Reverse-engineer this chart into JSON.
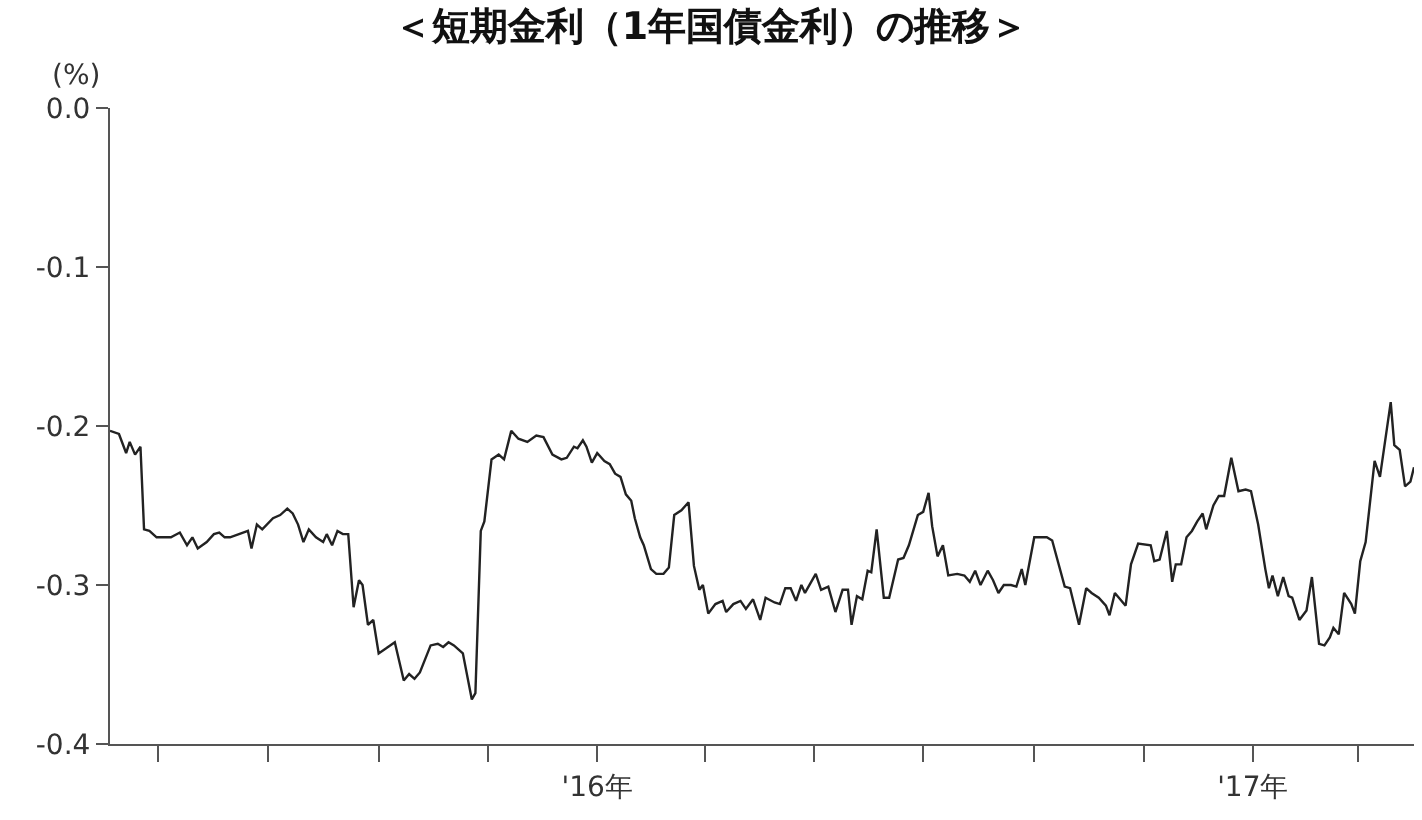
{
  "chart_data": {
    "type": "line",
    "title": "＜短期金利（1年国債金利）の推移＞",
    "ylabel": "(%)",
    "x": [
      "2015-04-04",
      "2015-04-09",
      "2015-04-13",
      "2015-04-15",
      "2015-04-18",
      "2015-04-21",
      "2015-04-23",
      "2015-04-26",
      "2015-04-30",
      "2015-05-08",
      "2015-05-13",
      "2015-05-17",
      "2015-05-20",
      "2015-05-23",
      "2015-05-28",
      "2015-06-01",
      "2015-06-04",
      "2015-06-07",
      "2015-06-10",
      "2015-06-15",
      "2015-06-20",
      "2015-06-22",
      "2015-06-25",
      "2015-06-28",
      "2015-07-04",
      "2015-07-08",
      "2015-07-12",
      "2015-07-15",
      "2015-07-18",
      "2015-07-21",
      "2015-07-24",
      "2015-07-28",
      "2015-08-01",
      "2015-08-03",
      "2015-08-06",
      "2015-08-09",
      "2015-08-12",
      "2015-08-15",
      "2015-08-18",
      "2015-08-21",
      "2015-08-23",
      "2015-08-26",
      "2015-08-29",
      "2015-09-01",
      "2015-09-05",
      "2015-09-10",
      "2015-09-15",
      "2015-09-18",
      "2015-09-21",
      "2015-09-24",
      "2015-09-30",
      "2015-10-04",
      "2015-10-07",
      "2015-10-10",
      "2015-10-13",
      "2015-10-18",
      "2015-10-23",
      "2015-10-25",
      "2015-10-28",
      "2015-10-30",
      "2015-11-03",
      "2015-11-07",
      "2015-11-10",
      "2015-11-14",
      "2015-11-18",
      "2015-11-23",
      "2015-11-28",
      "2015-12-02",
      "2015-12-07",
      "2015-12-12",
      "2015-12-15",
      "2015-12-19",
      "2015-12-21",
      "2015-12-24",
      "2015-12-26",
      "2015-12-29",
      "2016-01-01",
      "2016-01-05",
      "2016-01-08",
      "2016-01-11",
      "2016-01-14",
      "2016-01-17",
      "2016-01-20",
      "2016-01-22",
      "2016-01-25",
      "2016-01-27",
      "2016-01-31",
      "2016-02-03",
      "2016-02-07",
      "2016-02-10",
      "2016-02-13",
      "2016-02-17",
      "2016-02-21",
      "2016-02-24",
      "2016-02-27",
      "2016-02-29",
      "2016-03-03",
      "2016-03-07",
      "2016-03-11",
      "2016-03-13",
      "2016-03-17",
      "2016-03-21",
      "2016-03-24",
      "2016-03-28",
      "2016-04-01",
      "2016-04-04",
      "2016-04-09",
      "2016-04-12",
      "2016-04-15",
      "2016-04-18",
      "2016-04-21",
      "2016-04-24",
      "2016-04-26",
      "2016-05-02",
      "2016-05-05",
      "2016-05-09",
      "2016-05-13",
      "2016-05-17",
      "2016-05-20",
      "2016-05-22",
      "2016-05-25",
      "2016-05-28",
      "2016-05-31",
      "2016-06-02",
      "2016-06-05",
      "2016-06-09",
      "2016-06-12",
      "2016-06-17",
      "2016-06-20",
      "2016-06-23",
      "2016-06-28",
      "2016-07-01",
      "2016-07-04",
      "2016-07-06",
      "2016-07-09",
      "2016-07-12",
      "2016-07-15",
      "2016-07-20",
      "2016-07-24",
      "2016-07-27",
      "2016-07-30",
      "2016-08-02",
      "2016-08-06",
      "2016-08-09",
      "2016-08-12",
      "2016-08-15",
      "2016-08-19",
      "2016-08-22",
      "2016-08-25",
      "2016-08-27",
      "2016-09-01",
      "2016-09-08",
      "2016-09-11",
      "2016-09-18",
      "2016-09-21",
      "2016-09-26",
      "2016-09-30",
      "2016-10-03",
      "2016-10-07",
      "2016-10-11",
      "2016-10-13",
      "2016-10-16",
      "2016-10-22",
      "2016-10-25",
      "2016-10-29",
      "2016-11-05",
      "2016-11-07",
      "2016-11-10",
      "2016-11-14",
      "2016-11-17",
      "2016-11-19",
      "2016-11-22",
      "2016-11-25",
      "2016-11-28",
      "2016-12-01",
      "2016-12-04",
      "2016-12-06",
      "2016-12-10",
      "2016-12-13",
      "2016-12-16",
      "2016-12-20",
      "2016-12-24",
      "2016-12-28",
      "2016-12-31",
      "2017-01-04",
      "2017-01-08",
      "2017-01-10",
      "2017-01-12",
      "2017-01-15",
      "2017-01-18",
      "2017-01-21",
      "2017-01-23",
      "2017-01-27",
      "2017-01-31",
      "2017-02-03",
      "2017-02-07",
      "2017-02-10",
      "2017-02-13",
      "2017-02-15",
      "2017-02-18",
      "2017-02-21",
      "2017-02-25",
      "2017-02-27",
      "2017-03-02",
      "2017-03-05",
      "2017-03-10",
      "2017-03-13",
      "2017-03-19",
      "2017-03-21",
      "2017-03-24",
      "2017-03-27",
      "2017-03-30",
      "2017-04-01"
    ],
    "values": [
      -0.203,
      -0.205,
      -0.217,
      -0.21,
      -0.218,
      -0.213,
      -0.265,
      -0.266,
      -0.27,
      -0.27,
      -0.267,
      -0.275,
      -0.27,
      -0.277,
      -0.273,
      -0.268,
      -0.267,
      -0.27,
      -0.27,
      -0.268,
      -0.266,
      -0.277,
      -0.262,
      -0.265,
      -0.258,
      -0.256,
      -0.252,
      -0.255,
      -0.262,
      -0.273,
      -0.265,
      -0.27,
      -0.273,
      -0.268,
      -0.275,
      -0.266,
      -0.268,
      -0.268,
      -0.314,
      -0.297,
      -0.3,
      -0.325,
      -0.322,
      -0.343,
      -0.34,
      -0.336,
      -0.36,
      -0.356,
      -0.359,
      -0.355,
      -0.338,
      -0.337,
      -0.339,
      -0.336,
      -0.338,
      -0.343,
      -0.372,
      -0.368,
      -0.266,
      -0.26,
      -0.221,
      -0.218,
      -0.221,
      -0.203,
      -0.208,
      -0.21,
      -0.206,
      -0.207,
      -0.218,
      -0.221,
      -0.22,
      -0.213,
      -0.214,
      -0.209,
      -0.213,
      -0.223,
      -0.217,
      -0.222,
      -0.224,
      -0.23,
      -0.232,
      -0.243,
      -0.247,
      -0.258,
      -0.27,
      -0.275,
      -0.29,
      -0.293,
      -0.293,
      -0.289,
      -0.256,
      -0.253,
      -0.248,
      -0.288,
      -0.303,
      -0.3,
      -0.318,
      -0.312,
      -0.31,
      -0.317,
      -0.312,
      -0.31,
      -0.315,
      -0.309,
      -0.322,
      -0.308,
      -0.311,
      -0.312,
      -0.302,
      -0.302,
      -0.31,
      -0.3,
      -0.305,
      -0.293,
      -0.303,
      -0.301,
      -0.317,
      -0.303,
      -0.303,
      -0.325,
      -0.307,
      -0.309,
      -0.291,
      -0.292,
      -0.265,
      -0.308,
      -0.308,
      -0.284,
      -0.283,
      -0.275,
      -0.256,
      -0.254,
      -0.242,
      -0.263,
      -0.282,
      -0.275,
      -0.294,
      -0.293,
      -0.294,
      -0.298,
      -0.291,
      -0.3,
      -0.291,
      -0.297,
      -0.305,
      -0.3,
      -0.3,
      -0.301,
      -0.29,
      -0.3,
      -0.27,
      -0.27,
      -0.272,
      -0.301,
      -0.302,
      -0.325,
      -0.302,
      -0.305,
      -0.308,
      -0.313,
      -0.319,
      -0.305,
      -0.313,
      -0.287,
      -0.274,
      -0.275,
      -0.285,
      -0.284,
      -0.266,
      -0.298,
      -0.287,
      -0.287,
      -0.27,
      -0.266,
      -0.26,
      -0.255,
      -0.265,
      -0.25,
      -0.244,
      -0.244,
      -0.22,
      -0.241,
      -0.24,
      -0.241,
      -0.262,
      -0.29,
      -0.302,
      -0.294,
      -0.307,
      -0.295,
      -0.307,
      -0.308,
      -0.322,
      -0.316,
      -0.295,
      -0.337,
      -0.338,
      -0.333,
      -0.327,
      -0.331,
      -0.305,
      -0.312,
      -0.318,
      -0.285,
      -0.273,
      -0.222,
      -0.232,
      -0.185,
      -0.212,
      -0.215,
      -0.238,
      -0.235,
      -0.226
    ],
    "color": "#222222",
    "line_style": "solid",
    "grid": false,
    "xlim": [
      "2015-04-04",
      "2017-04-01"
    ],
    "xticks": [
      {
        "value": "2015-05-01",
        "label": null
      },
      {
        "value": "2015-07-01",
        "label": null
      },
      {
        "value": "2015-09-01",
        "label": null
      },
      {
        "value": "2015-11-01",
        "label": null
      },
      {
        "value": "2016-01-01",
        "label": "'16年"
      },
      {
        "value": "2016-03-01",
        "label": null
      },
      {
        "value": "2016-05-01",
        "label": null
      },
      {
        "value": "2016-07-01",
        "label": null
      },
      {
        "value": "2016-09-01",
        "label": null
      },
      {
        "value": "2016-11-01",
        "label": null
      },
      {
        "value": "2017-01-01",
        "label": "'17年"
      },
      {
        "value": "2017-03-01",
        "label": null
      }
    ],
    "ylim": [
      -0.4,
      0.0
    ],
    "yticks": [
      {
        "value": -0.4,
        "label": "-0.4"
      },
      {
        "value": -0.3,
        "label": "-0.3"
      },
      {
        "value": -0.2,
        "label": "-0.2"
      },
      {
        "value": -0.1,
        "label": "-0.1"
      },
      {
        "value": 0.0,
        "label": "0.0"
      }
    ]
  }
}
